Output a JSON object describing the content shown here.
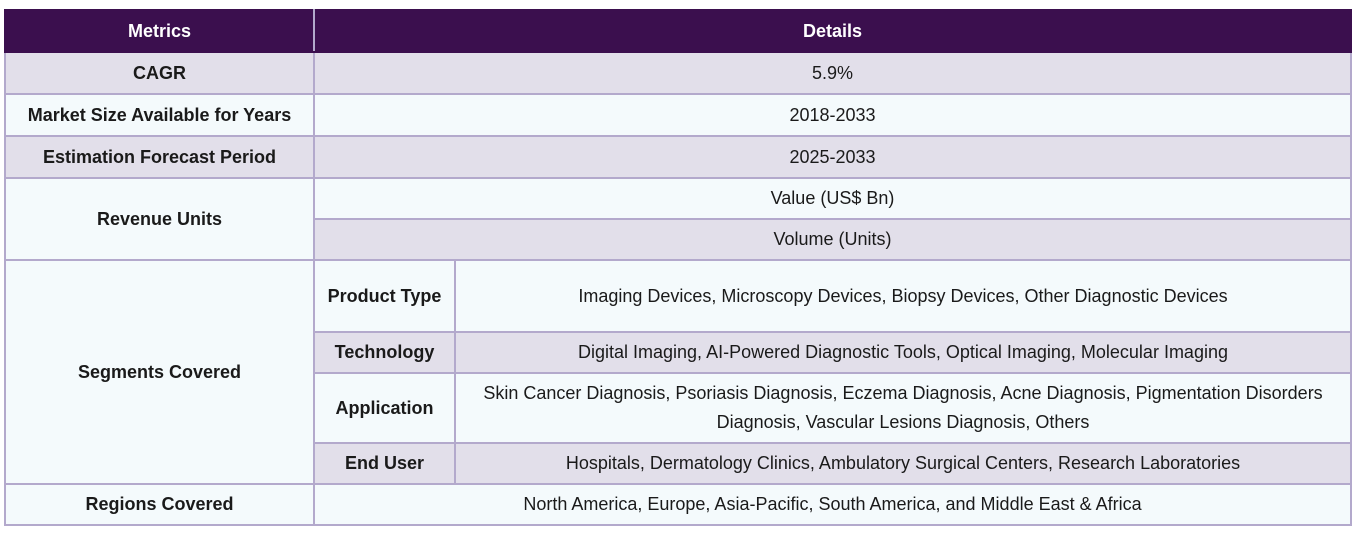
{
  "header": {
    "metrics": "Metrics",
    "details": "Details"
  },
  "rows": {
    "cagr": {
      "label": "CAGR",
      "value": "5.9%"
    },
    "market_size": {
      "label": "Market Size Available for Years",
      "value": "2018-2033"
    },
    "forecast": {
      "label": "Estimation Forecast Period",
      "value": "2025-2033"
    },
    "revenue_units": {
      "label": "Revenue Units",
      "values": [
        "Value (US$ Bn)",
        "Volume (Units)"
      ]
    },
    "segments": {
      "label": "Segments Covered",
      "items": [
        {
          "label": "Product Type",
          "value": "Imaging Devices, Microscopy Devices, Biopsy Devices, Other Diagnostic Devices"
        },
        {
          "label": "Technology",
          "value": "Digital Imaging, AI-Powered Diagnostic Tools, Optical Imaging, Molecular Imaging"
        },
        {
          "label": "Application",
          "value": "Skin Cancer Diagnosis, Psoriasis Diagnosis, Eczema Diagnosis, Acne Diagnosis, Pigmentation Disorders Diagnosis, Vascular Lesions Diagnosis, Others"
        },
        {
          "label": "End User",
          "value": "Hospitals, Dermatology Clinics, Ambulatory Surgical Centers, Research Laboratories"
        }
      ]
    },
    "regions": {
      "label": "Regions Covered",
      "value": "North America, Europe, Asia-Pacific, South America, and Middle East & Africa"
    }
  },
  "colors": {
    "header_bg": "#3b0f4e",
    "row_lavender": "#e2dfea",
    "row_white": "#f4fafc",
    "border": "#b3a9cc"
  }
}
